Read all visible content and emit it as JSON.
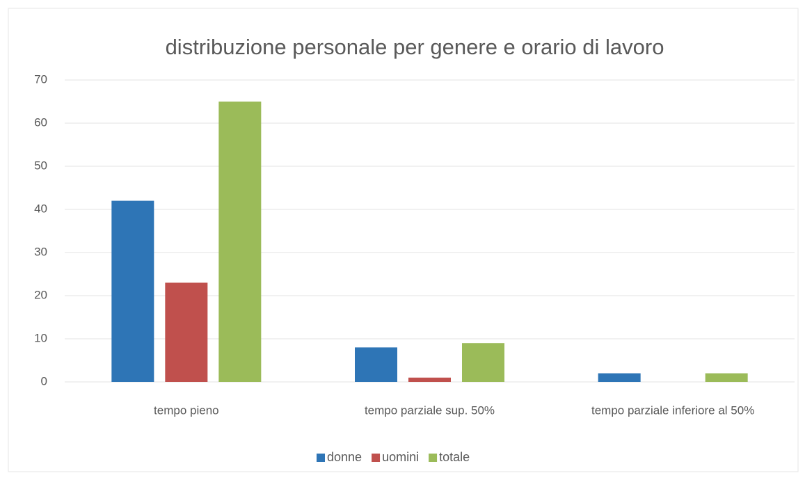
{
  "chart_data": {
    "type": "bar",
    "title": "distribuzione personale per genere e orario di lavoro",
    "categories": [
      "tempo pieno",
      "tempo parziale sup. 50%",
      "tempo parziale inferiore al 50%"
    ],
    "series": [
      {
        "name": "donne",
        "color": "#2e75b6",
        "values": [
          42,
          8,
          2
        ]
      },
      {
        "name": "uomini",
        "color": "#c0504d",
        "values": [
          23,
          1,
          0
        ]
      },
      {
        "name": "totale",
        "color": "#9bbb59",
        "values": [
          65,
          9,
          2
        ]
      }
    ],
    "ylim": [
      0,
      70
    ],
    "yticks": [
      0,
      10,
      20,
      30,
      40,
      50,
      60,
      70
    ],
    "grid": true,
    "legend": "bottom"
  }
}
